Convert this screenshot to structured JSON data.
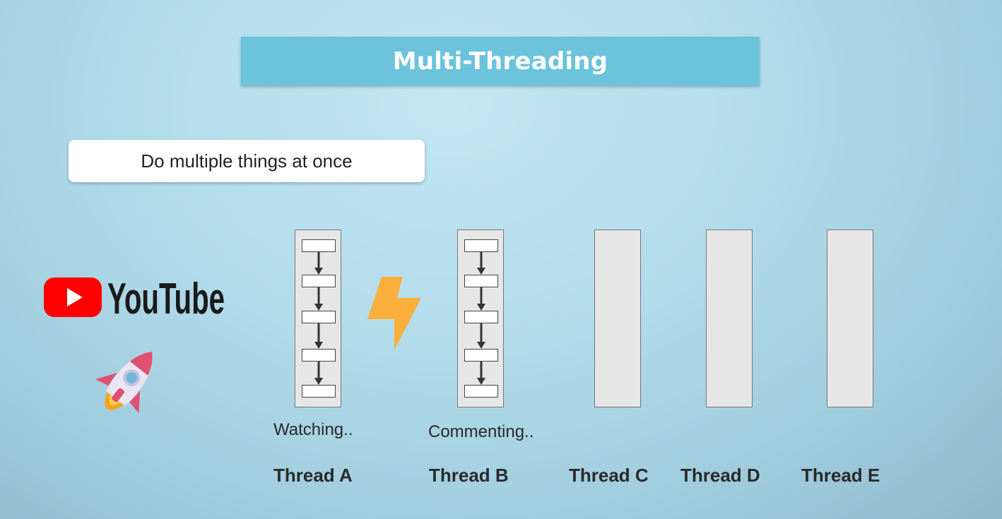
{
  "title": "Multi-Threading",
  "subtitle": "Do multiple things at once",
  "logo": {
    "name": "YouTube",
    "icon": "youtube-play-icon",
    "brand_color": "#ff0000"
  },
  "decorations": {
    "rocket": "rocket-icon",
    "bolt": "lightning-bolt-icon",
    "bolt_color": "#fbb03b"
  },
  "threads": [
    {
      "label": "Thread A",
      "activity": "Watching..",
      "steps": 5
    },
    {
      "label": "Thread B",
      "activity": "Commenting..",
      "steps": 5
    },
    {
      "label": "Thread C",
      "activity": "",
      "steps": 0
    },
    {
      "label": "Thread D",
      "activity": "",
      "steps": 0
    },
    {
      "label": "Thread E",
      "activity": "",
      "steps": 0
    }
  ]
}
